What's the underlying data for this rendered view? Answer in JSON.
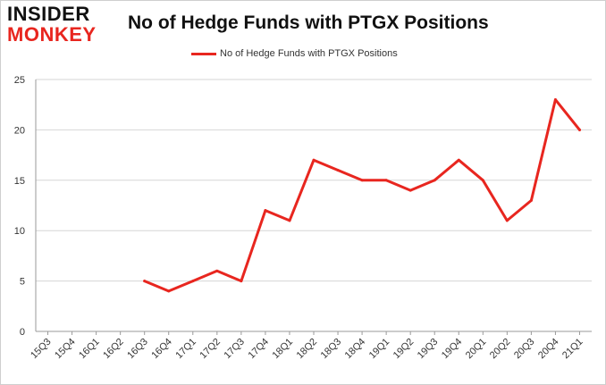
{
  "logo": {
    "line1": "INSIDER",
    "line2": "MONKEY"
  },
  "colors": {
    "series": "#e8261f",
    "grid": "#d6d6d6",
    "axis": "#9a9a9a",
    "text": "#333333"
  },
  "chart_data": {
    "type": "line",
    "title": "No of Hedge Funds with PTGX Positions",
    "xlabel": "",
    "ylabel": "",
    "legend_position": "top",
    "grid": true,
    "ylim": [
      0,
      25
    ],
    "yticks": [
      0,
      5,
      10,
      15,
      20,
      25
    ],
    "categories": [
      "15Q3",
      "15Q4",
      "16Q1",
      "16Q2",
      "16Q3",
      "16Q4",
      "17Q1",
      "17Q2",
      "17Q3",
      "17Q4",
      "18Q1",
      "18Q2",
      "18Q3",
      "18Q4",
      "19Q1",
      "19Q2",
      "19Q3",
      "19Q4",
      "20Q1",
      "20Q2",
      "20Q3",
      "20Q4",
      "21Q1"
    ],
    "series": [
      {
        "name": "No of Hedge Funds with PTGX Positions",
        "values": [
          null,
          null,
          null,
          null,
          5,
          4,
          5,
          6,
          5,
          12,
          11,
          17,
          16,
          15,
          15,
          14,
          15,
          17,
          15,
          11,
          13,
          23,
          20
        ]
      }
    ]
  }
}
